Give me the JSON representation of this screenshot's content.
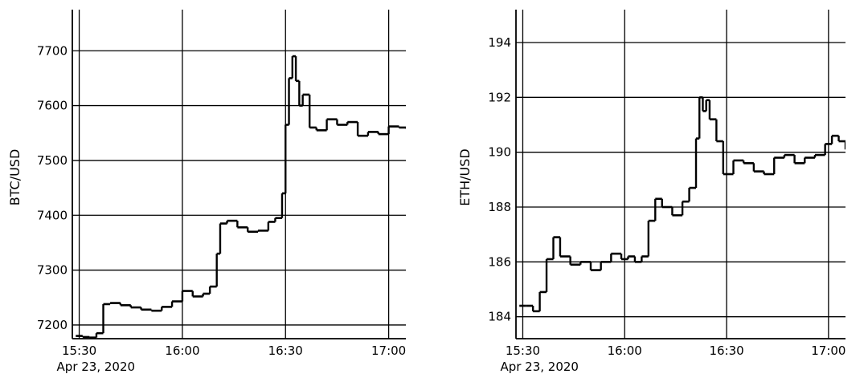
{
  "chart_data": [
    {
      "type": "candlestick",
      "ylabel": "BTC/USD",
      "x_range": [
        "15:28",
        "17:05"
      ],
      "ylim": [
        7175,
        7775
      ],
      "x_ticks": [
        "15:30",
        "16:00",
        "16:30",
        "17:00"
      ],
      "y_ticks": [
        7200,
        7300,
        7400,
        7500,
        7600,
        7700
      ],
      "date_label": "Apr 23, 2020",
      "grid": true,
      "close_approx": [
        [
          "15:29",
          7180
        ],
        [
          "15:31",
          7178
        ],
        [
          "15:33",
          7177
        ],
        [
          "15:35",
          7185
        ],
        [
          "15:37",
          7238
        ],
        [
          "15:39",
          7240
        ],
        [
          "15:42",
          7236
        ],
        [
          "15:45",
          7232
        ],
        [
          "15:48",
          7228
        ],
        [
          "15:51",
          7226
        ],
        [
          "15:54",
          7233
        ],
        [
          "15:57",
          7243
        ],
        [
          "16:00",
          7262
        ],
        [
          "16:03",
          7252
        ],
        [
          "16:06",
          7257
        ],
        [
          "16:08",
          7270
        ],
        [
          "16:10",
          7330
        ],
        [
          "16:11",
          7385
        ],
        [
          "16:13",
          7390
        ],
        [
          "16:16",
          7378
        ],
        [
          "16:19",
          7370
        ],
        [
          "16:22",
          7372
        ],
        [
          "16:25",
          7388
        ],
        [
          "16:27",
          7395
        ],
        [
          "16:29",
          7440
        ],
        [
          "16:30",
          7565
        ],
        [
          "16:31",
          7650
        ],
        [
          "16:32",
          7690
        ],
        [
          "16:33",
          7645
        ],
        [
          "16:34",
          7600
        ],
        [
          "16:35",
          7620
        ],
        [
          "16:37",
          7560
        ],
        [
          "16:39",
          7555
        ],
        [
          "16:42",
          7575
        ],
        [
          "16:45",
          7565
        ],
        [
          "16:48",
          7570
        ],
        [
          "16:51",
          7545
        ],
        [
          "16:54",
          7552
        ],
        [
          "16:57",
          7548
        ],
        [
          "17:00",
          7562
        ],
        [
          "17:03",
          7560
        ],
        [
          "17:05",
          7558
        ]
      ]
    },
    {
      "type": "candlestick",
      "ylabel": "ETH/USD",
      "x_range": [
        "15:28",
        "17:05"
      ],
      "ylim": [
        183.2,
        195.2
      ],
      "x_ticks": [
        "15:30",
        "16:00",
        "16:30",
        "17:00"
      ],
      "y_ticks": [
        184,
        186,
        188,
        190,
        192,
        194
      ],
      "date_label": "Apr 23, 2020",
      "grid": true,
      "close_approx": [
        [
          "15:29",
          184.4
        ],
        [
          "15:31",
          184.4
        ],
        [
          "15:33",
          184.2
        ],
        [
          "15:35",
          184.9
        ],
        [
          "15:37",
          186.1
        ],
        [
          "15:39",
          186.9
        ],
        [
          "15:41",
          186.2
        ],
        [
          "15:44",
          185.9
        ],
        [
          "15:47",
          186.0
        ],
        [
          "15:50",
          185.7
        ],
        [
          "15:53",
          186.0
        ],
        [
          "15:56",
          186.3
        ],
        [
          "15:59",
          186.1
        ],
        [
          "16:01",
          186.2
        ],
        [
          "16:03",
          186.0
        ],
        [
          "16:05",
          186.2
        ],
        [
          "16:07",
          187.5
        ],
        [
          "16:09",
          188.3
        ],
        [
          "16:11",
          188.0
        ],
        [
          "16:14",
          187.7
        ],
        [
          "16:17",
          188.2
        ],
        [
          "16:19",
          188.7
        ],
        [
          "16:21",
          190.5
        ],
        [
          "16:22",
          192.0
        ],
        [
          "16:23",
          191.5
        ],
        [
          "16:24",
          191.9
        ],
        [
          "16:25",
          191.2
        ],
        [
          "16:27",
          190.4
        ],
        [
          "16:29",
          189.2
        ],
        [
          "16:32",
          189.7
        ],
        [
          "16:35",
          189.6
        ],
        [
          "16:38",
          189.3
        ],
        [
          "16:41",
          189.2
        ],
        [
          "16:44",
          189.8
        ],
        [
          "16:47",
          189.9
        ],
        [
          "16:50",
          189.6
        ],
        [
          "16:53",
          189.8
        ],
        [
          "16:56",
          189.9
        ],
        [
          "16:59",
          190.3
        ],
        [
          "17:01",
          190.6
        ],
        [
          "17:03",
          190.4
        ],
        [
          "17:05",
          190.1
        ]
      ]
    }
  ]
}
